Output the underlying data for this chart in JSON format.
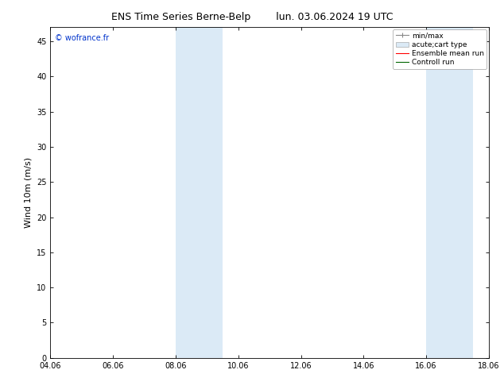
{
  "title_left": "ENS Time Series Berne-Belp",
  "title_right": "lun. 03.06.2024 19 UTC",
  "ylabel": "Wind 10m (m/s)",
  "xtick_labels": [
    "04.06",
    "06.06",
    "08.06",
    "10.06",
    "12.06",
    "14.06",
    "16.06",
    "18.06"
  ],
  "xtick_positions": [
    0,
    2,
    4,
    6,
    8,
    10,
    12,
    14
  ],
  "xlim": [
    0,
    14
  ],
  "ylim": [
    0,
    47
  ],
  "ytick_positions": [
    0,
    5,
    10,
    15,
    20,
    25,
    30,
    35,
    40,
    45
  ],
  "shaded_bands": [
    {
      "x_start": 4,
      "x_end": 5.5
    },
    {
      "x_start": 12,
      "x_end": 13.5
    }
  ],
  "shaded_color": "#dbeaf6",
  "watermark": "© wofrance.fr",
  "watermark_color": "#0033cc",
  "legend_labels": [
    "min/max",
    "acute;cart type",
    "Ensemble mean run",
    "Controll run"
  ],
  "bg_color": "#ffffff",
  "title_fontsize": 9,
  "axis_label_fontsize": 8,
  "tick_fontsize": 7,
  "watermark_fontsize": 7,
  "legend_fontsize": 6.5
}
